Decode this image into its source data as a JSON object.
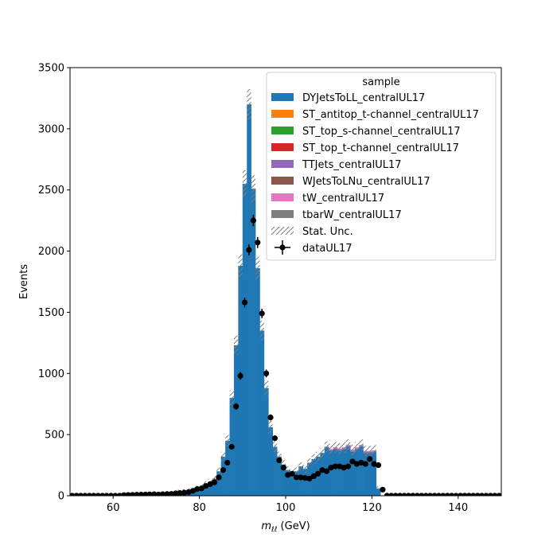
{
  "chart_data": {
    "type": "bar",
    "subtype": "stacked-step-histogram-with-data-points",
    "xlabel_base": "m",
    "xlabel_sub": "ℓℓ",
    "xlabel_unit": " (GeV)",
    "ylabel": "Events",
    "xlim": [
      50,
      150
    ],
    "ylim": [
      0,
      3500
    ],
    "xticks": [
      60,
      80,
      100,
      120,
      140
    ],
    "yticks": [
      0,
      500,
      1000,
      1500,
      2000,
      2500,
      3000,
      3500
    ],
    "grid": false,
    "legend_title": "sample",
    "legend_position": "top-right",
    "bin_width": 1,
    "bin_start": 50,
    "series": [
      {
        "name": "DYJetsToLL_centralUL17",
        "color": "#1f77b4",
        "values": [
          0,
          0,
          0,
          0,
          0,
          0,
          0,
          0,
          0,
          0,
          0,
          0,
          5,
          6,
          7,
          8,
          9,
          10,
          11,
          12,
          14,
          16,
          20,
          24,
          30,
          36,
          40,
          45,
          55,
          65,
          75,
          95,
          115,
          140,
          200,
          320,
          450,
          800,
          1230,
          1880,
          2550,
          3200,
          2510,
          1860,
          1350,
          880,
          560,
          400,
          320,
          255,
          210,
          185,
          200,
          240,
          220,
          270,
          300,
          320,
          350,
          400,
          370,
          380,
          370,
          380,
          400,
          360,
          380,
          400,
          350,
          350,
          355,
          60,
          0,
          0,
          0,
          0,
          0,
          0,
          0,
          0,
          0,
          0,
          0,
          0,
          0,
          0,
          0,
          0,
          0,
          0,
          0,
          0,
          0,
          0,
          0,
          0,
          0,
          0,
          0,
          0
        ]
      },
      {
        "name": "ST_antitop_t-channel_centralUL17",
        "color": "#ff7f0e",
        "values": [
          0,
          0,
          0,
          0,
          0,
          0,
          0,
          0,
          0,
          0,
          0,
          0,
          0,
          0,
          0,
          0,
          0,
          0,
          0,
          0,
          0,
          0,
          0,
          0,
          0,
          0,
          0,
          0,
          0,
          0,
          0,
          0,
          0,
          0,
          0,
          0,
          0,
          0,
          0,
          0,
          0,
          0,
          0,
          0,
          0,
          0,
          0,
          0,
          0,
          0,
          0,
          0,
          0,
          0,
          0,
          0,
          0,
          0,
          0,
          0,
          0,
          0,
          0,
          0,
          0,
          0,
          0,
          0,
          0,
          0,
          0,
          0,
          0,
          0,
          0,
          0,
          0,
          0,
          0,
          0,
          0,
          0,
          0,
          0,
          0,
          0,
          0,
          0,
          0,
          0,
          0,
          0,
          0,
          0,
          0,
          0,
          0,
          0,
          0,
          0
        ]
      },
      {
        "name": "ST_top_s-channel_centralUL17",
        "color": "#2ca02c",
        "values": [
          0,
          0,
          0,
          0,
          0,
          0,
          0,
          0,
          0,
          0,
          0,
          0,
          0,
          0,
          0,
          0,
          0,
          0,
          0,
          0,
          0,
          0,
          0,
          0,
          0,
          0,
          0,
          0,
          0,
          0,
          0,
          0,
          0,
          0,
          0,
          0,
          0,
          0,
          0,
          0,
          0,
          0,
          0,
          0,
          0,
          0,
          0,
          0,
          0,
          0,
          0,
          0,
          0,
          0,
          0,
          0,
          0,
          0,
          0,
          0,
          0,
          0,
          0,
          0,
          0,
          0,
          0,
          0,
          0,
          0,
          0,
          0,
          0,
          0,
          0,
          0,
          0,
          0,
          0,
          0,
          0,
          0,
          0,
          0,
          0,
          0,
          0,
          0,
          0,
          0,
          0,
          0,
          0,
          0,
          0,
          0,
          0,
          0,
          0,
          0
        ]
      },
      {
        "name": "ST_top_t-channel_centralUL17",
        "color": "#d62728",
        "values": [
          0,
          0,
          0,
          0,
          0,
          0,
          0,
          0,
          0,
          0,
          0,
          0,
          0,
          0,
          0,
          0,
          0,
          0,
          0,
          0,
          0,
          0,
          0,
          0,
          0,
          0,
          0,
          0,
          0,
          0,
          0,
          0,
          0,
          0,
          0,
          0,
          0,
          0,
          0,
          0,
          0,
          0,
          0,
          0,
          0,
          0,
          0,
          0,
          0,
          0,
          0,
          0,
          0,
          0,
          0,
          0,
          0,
          0,
          0,
          0,
          0,
          0,
          0,
          0,
          0,
          0,
          0,
          0,
          0,
          0,
          0,
          0,
          0,
          0,
          0,
          0,
          0,
          0,
          0,
          0,
          0,
          0,
          0,
          0,
          0,
          0,
          0,
          0,
          0,
          0,
          0,
          0,
          0,
          0,
          0,
          0,
          0,
          0,
          0,
          0
        ]
      },
      {
        "name": "TTJets_centralUL17",
        "color": "#9467bd",
        "values": [
          0,
          0,
          0,
          0,
          0,
          0,
          0,
          0,
          0,
          0,
          0,
          0,
          0,
          0,
          0,
          0,
          0,
          0,
          0,
          0,
          0,
          0,
          0,
          0,
          0,
          0,
          0,
          0,
          0,
          0,
          0,
          0,
          0,
          0,
          0,
          0,
          0,
          0,
          0,
          0,
          0,
          0,
          0,
          0,
          0,
          0,
          0,
          0,
          0,
          0,
          0,
          0,
          0,
          0,
          0,
          0,
          0,
          0,
          0,
          0,
          6,
          8,
          8,
          8,
          8,
          8,
          8,
          8,
          8,
          8,
          8,
          0,
          0,
          0,
          0,
          0,
          0,
          0,
          0,
          0,
          0,
          0,
          0,
          0,
          0,
          0,
          0,
          0,
          0,
          0,
          0,
          0,
          0,
          0,
          0,
          0,
          0,
          0,
          0,
          0
        ]
      },
      {
        "name": "WJetsToLNu_centralUL17",
        "color": "#8c564b",
        "values": [
          0,
          0,
          0,
          0,
          0,
          0,
          0,
          0,
          0,
          0,
          0,
          0,
          0,
          0,
          0,
          0,
          0,
          0,
          0,
          0,
          0,
          0,
          0,
          0,
          0,
          0,
          0,
          0,
          0,
          0,
          0,
          0,
          0,
          0,
          0,
          0,
          0,
          0,
          0,
          0,
          0,
          0,
          0,
          0,
          0,
          0,
          0,
          0,
          0,
          0,
          0,
          0,
          0,
          0,
          0,
          0,
          0,
          0,
          0,
          0,
          0,
          0,
          0,
          0,
          0,
          0,
          0,
          0,
          0,
          0,
          0,
          0,
          0,
          0,
          0,
          0,
          0,
          0,
          0,
          0,
          0,
          0,
          0,
          0,
          0,
          0,
          0,
          0,
          0,
          0,
          0,
          0,
          0,
          0,
          0,
          0,
          0,
          0,
          0,
          0
        ]
      },
      {
        "name": "tW_centralUL17",
        "color": "#e377c2",
        "values": [
          0,
          0,
          0,
          0,
          0,
          0,
          0,
          0,
          0,
          0,
          0,
          0,
          0,
          0,
          0,
          0,
          0,
          0,
          0,
          0,
          0,
          0,
          0,
          0,
          0,
          0,
          0,
          0,
          0,
          0,
          0,
          0,
          0,
          0,
          0,
          0,
          0,
          0,
          0,
          0,
          0,
          0,
          0,
          0,
          0,
          0,
          0,
          0,
          0,
          0,
          0,
          0,
          0,
          0,
          0,
          0,
          0,
          0,
          0,
          0,
          6,
          8,
          8,
          8,
          8,
          8,
          8,
          8,
          8,
          8,
          8,
          0,
          0,
          0,
          0,
          0,
          0,
          0,
          0,
          0,
          0,
          0,
          0,
          0,
          0,
          0,
          0,
          0,
          0,
          0,
          0,
          0,
          0,
          0,
          0,
          0,
          0,
          0,
          0,
          0
        ]
      },
      {
        "name": "tbarW_centralUL17",
        "color": "#7f7f7f",
        "values": [
          0,
          0,
          0,
          0,
          0,
          0,
          0,
          0,
          0,
          0,
          0,
          0,
          0,
          0,
          0,
          0,
          0,
          0,
          0,
          0,
          0,
          0,
          0,
          0,
          0,
          0,
          0,
          0,
          0,
          0,
          0,
          0,
          0,
          0,
          0,
          0,
          0,
          0,
          0,
          0,
          0,
          0,
          0,
          0,
          0,
          0,
          0,
          0,
          0,
          0,
          0,
          0,
          0,
          0,
          0,
          0,
          0,
          0,
          0,
          0,
          0,
          0,
          0,
          0,
          0,
          0,
          0,
          0,
          0,
          0,
          0,
          0,
          0,
          0,
          0,
          0,
          0,
          0,
          0,
          0,
          0,
          0,
          0,
          0,
          0,
          0,
          0,
          0,
          0,
          0,
          0,
          0,
          0,
          0,
          0,
          0,
          0,
          0,
          0,
          0
        ]
      }
    ],
    "stat_unc": {
      "name": "Stat. Unc."
    },
    "data": {
      "name": "dataUL17",
      "color": "#000000",
      "values": [
        0,
        0,
        0,
        0,
        0,
        0,
        0,
        0,
        0,
        0,
        0,
        0,
        5,
        6,
        7,
        8,
        9,
        10,
        11,
        12,
        10,
        12,
        14,
        15,
        20,
        22,
        25,
        30,
        40,
        55,
        60,
        80,
        95,
        110,
        150,
        210,
        270,
        400,
        730,
        980,
        1580,
        2010,
        2250,
        2070,
        1490,
        1000,
        640,
        470,
        290,
        230,
        170,
        180,
        150,
        150,
        145,
        140,
        160,
        180,
        210,
        200,
        230,
        240,
        240,
        230,
        240,
        280,
        260,
        270,
        260,
        300,
        260,
        250,
        50,
        0,
        0,
        0,
        0,
        0,
        0,
        0,
        0,
        0,
        0,
        0,
        0,
        0,
        0,
        0,
        0,
        0,
        0,
        0,
        0,
        0,
        0,
        0,
        0,
        0,
        0,
        0
      ]
    }
  }
}
